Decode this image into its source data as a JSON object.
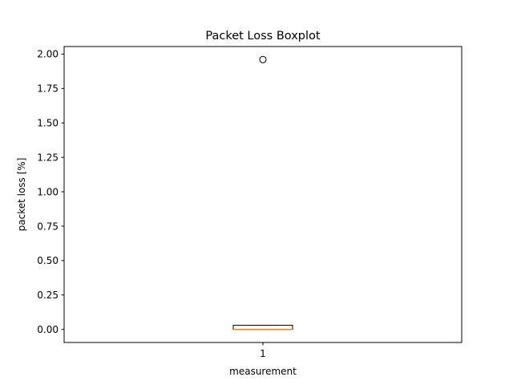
{
  "chart_data": {
    "type": "boxplot",
    "title": "Packet Loss Boxplot",
    "xlabel": "measurement",
    "ylabel": "packet loss [%]",
    "ylim": [
      -0.095,
      2.055
    ],
    "yticks": [
      0.0,
      0.25,
      0.5,
      0.75,
      1.0,
      1.25,
      1.5,
      1.75,
      2.0
    ],
    "ytick_labels": [
      "0.00",
      "0.25",
      "0.50",
      "0.75",
      "1.00",
      "1.25",
      "1.50",
      "1.75",
      "2.00"
    ],
    "categories": [
      "1"
    ],
    "boxes": [
      {
        "category": "1",
        "whisker_low": 0.0,
        "q1": 0.0,
        "median": 0.0,
        "q3": 0.03,
        "whisker_high": 0.03,
        "outliers": [
          1.96
        ]
      }
    ],
    "colors": {
      "box": "#000000",
      "median": "#ff7f0e",
      "outlier": "#000000"
    }
  }
}
